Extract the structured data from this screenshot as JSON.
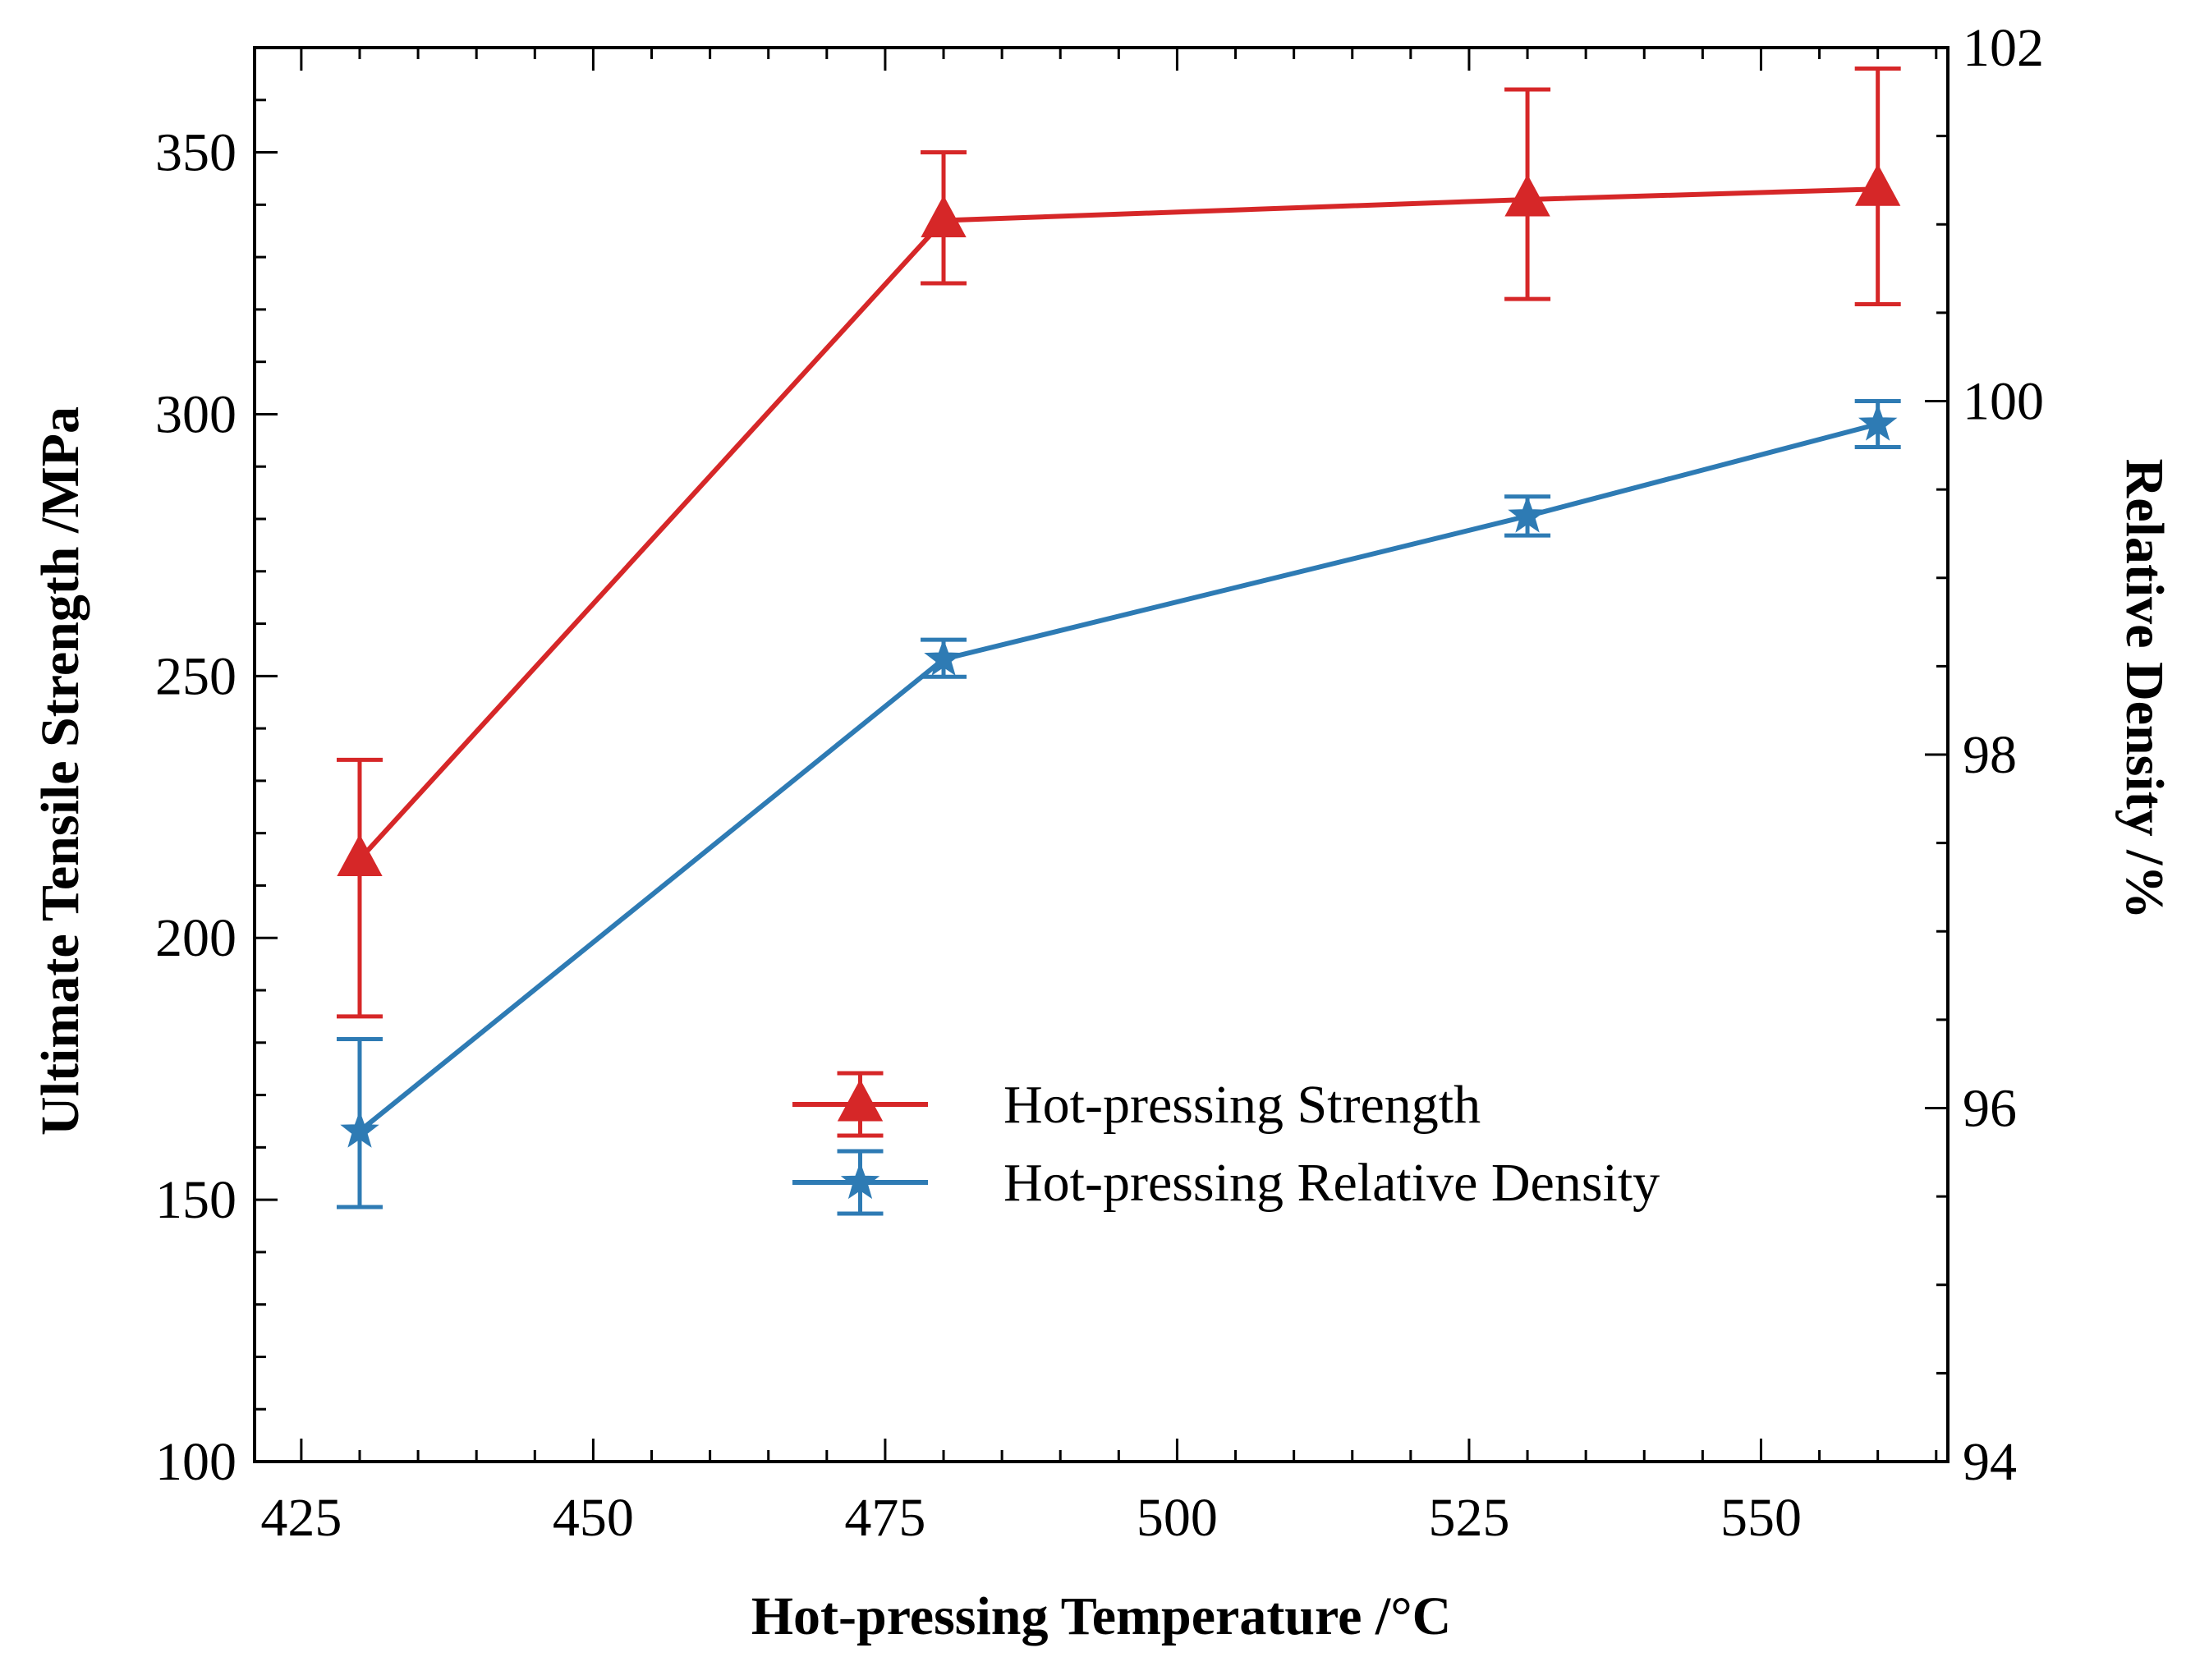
{
  "chart_data": {
    "type": "line",
    "title": "",
    "xlabel": "Hot-pressing Temperature /°C",
    "ylabel": "Ultimate Tensile Strength /MPa",
    "y2label": "Relative Density /%",
    "xlim": [
      421,
      566
    ],
    "ylim": [
      100,
      370
    ],
    "y2lim": [
      94,
      102
    ],
    "x_ticks": [
      425,
      450,
      475,
      500,
      525,
      550
    ],
    "y_ticks": [
      100,
      150,
      200,
      250,
      300,
      350
    ],
    "y2_ticks": [
      94,
      96,
      98,
      100,
      102
    ],
    "grid": false,
    "legend_position": "center-right",
    "series": [
      {
        "name": "Hot-pressing Strength",
        "axis": "left",
        "marker": "triangle",
        "color": "#d62728",
        "x": [
          430,
          480,
          530,
          560
        ],
        "y": [
          215,
          337,
          341,
          343
        ],
        "err_low": [
          185,
          325,
          322,
          321
        ],
        "err_high": [
          234,
          350,
          362,
          366
        ]
      },
      {
        "name": "Hot-pressing Relative Density",
        "axis": "right",
        "marker": "star",
        "color": "#2e7bb4",
        "x": [
          430,
          480,
          530,
          560
        ],
        "y": [
          95.87,
          98.54,
          99.35,
          99.87
        ],
        "err_low": [
          95.44,
          98.44,
          99.24,
          99.74
        ],
        "err_high": [
          96.39,
          98.65,
          99.46,
          100.0
        ]
      }
    ]
  }
}
